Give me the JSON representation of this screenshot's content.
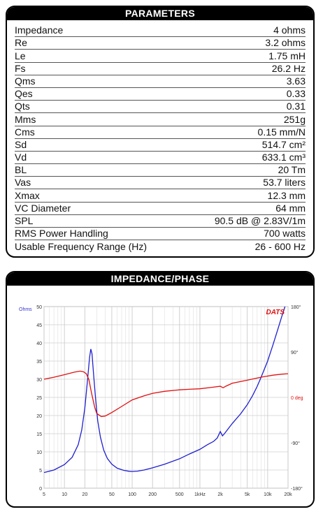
{
  "parameters": {
    "title": "PARAMETERS",
    "rows": [
      {
        "label": "Impedance",
        "value": "4 ohms"
      },
      {
        "label": "Re",
        "value": "3.2 ohms"
      },
      {
        "label": "Le",
        "value": "1.75 mH"
      },
      {
        "label": "Fs",
        "value": "26.2 Hz"
      },
      {
        "label": "Qms",
        "value": "3.63"
      },
      {
        "label": "Qes",
        "value": "0.33"
      },
      {
        "label": "Qts",
        "value": "0.31"
      },
      {
        "label": "Mms",
        "value": "251g"
      },
      {
        "label": "Cms",
        "value": "0.15 mm/N"
      },
      {
        "label": "Sd",
        "value": "514.7 cm²"
      },
      {
        "label": "Vd",
        "value": "633.1 cm³"
      },
      {
        "label": "BL",
        "value": "20 Tm"
      },
      {
        "label": "Vas",
        "value": "53.7 liters"
      },
      {
        "label": "Xmax",
        "value": "12.3 mm"
      },
      {
        "label": "VC Diameter",
        "value": "64 mm"
      },
      {
        "label": "SPL",
        "value": "90.5 dB @ 2.83V/1m"
      },
      {
        "label": "RMS Power Handling",
        "value": "700 watts"
      },
      {
        "label": "Usable Frequency Range (Hz)",
        "value": "26 - 600 Hz"
      }
    ]
  },
  "impedance_panel": {
    "title": "IMPEDANCE/PHASE",
    "brand": "DATS"
  },
  "chart_data": {
    "type": "line",
    "title": "IMPEDANCE/PHASE",
    "x_scale": "log",
    "xlim": [
      5,
      20000
    ],
    "x_ticks": [
      5,
      10,
      20,
      50,
      100,
      200,
      500,
      1000,
      2000,
      5000,
      10000,
      20000
    ],
    "x_tick_labels": [
      "5",
      "10",
      "20",
      "50",
      "100",
      "200",
      "500",
      "1kHz",
      "2k",
      "5k",
      "10k",
      "20k"
    ],
    "ylabel_left": "Ohms",
    "ylim_left": [
      0,
      50
    ],
    "y_ticks_left": [
      0,
      5,
      10,
      15,
      20,
      25,
      30,
      35,
      40,
      45,
      50
    ],
    "ylim_right": [
      -180,
      180
    ],
    "y_ticks_right": [
      180,
      90,
      0,
      -90,
      -180
    ],
    "y_tick_labels_right": [
      "180°",
      "90°",
      "0 deg",
      "-90°",
      "-180°"
    ],
    "grid": true,
    "series": [
      {
        "color": "#1f1fd0",
        "axis": "left",
        "points": [
          [
            5,
            4.3
          ],
          [
            7,
            5.0
          ],
          [
            10,
            6.5
          ],
          [
            13,
            8.5
          ],
          [
            16,
            12.0
          ],
          [
            18,
            16.0
          ],
          [
            20,
            22.0
          ],
          [
            22,
            30.0
          ],
          [
            23.5,
            36.0
          ],
          [
            24.5,
            38.3
          ],
          [
            25.5,
            37.0
          ],
          [
            27,
            31.0
          ],
          [
            29,
            24.0
          ],
          [
            31,
            18.5
          ],
          [
            34,
            14.0
          ],
          [
            38,
            10.5
          ],
          [
            43,
            8.2
          ],
          [
            50,
            6.6
          ],
          [
            60,
            5.5
          ],
          [
            75,
            4.9
          ],
          [
            90,
            4.65
          ],
          [
            100,
            4.6
          ],
          [
            120,
            4.7
          ],
          [
            150,
            5.0
          ],
          [
            200,
            5.6
          ],
          [
            300,
            6.6
          ],
          [
            500,
            8.1
          ],
          [
            700,
            9.4
          ],
          [
            1000,
            10.7
          ],
          [
            1300,
            12.0
          ],
          [
            1600,
            12.9
          ],
          [
            1800,
            13.8
          ],
          [
            2000,
            15.6
          ],
          [
            2150,
            14.4
          ],
          [
            2300,
            15.0
          ],
          [
            3000,
            17.8
          ],
          [
            4000,
            20.5
          ],
          [
            5000,
            23.0
          ],
          [
            6000,
            25.5
          ],
          [
            7000,
            28.0
          ],
          [
            8000,
            30.5
          ],
          [
            10000,
            35.0
          ],
          [
            12000,
            39.5
          ],
          [
            14000,
            43.5
          ],
          [
            16000,
            47.0
          ],
          [
            18000,
            50.0
          ]
        ]
      },
      {
        "color": "#e01010",
        "axis": "right",
        "points": [
          [
            5,
            36
          ],
          [
            7,
            40
          ],
          [
            10,
            45
          ],
          [
            14,
            50
          ],
          [
            17,
            52
          ],
          [
            19,
            51
          ],
          [
            21,
            47
          ],
          [
            23,
            35
          ],
          [
            25,
            10
          ],
          [
            28,
            -20
          ],
          [
            30,
            -32
          ],
          [
            35,
            -38
          ],
          [
            40,
            -37
          ],
          [
            50,
            -30
          ],
          [
            70,
            -18
          ],
          [
            100,
            -5
          ],
          [
            150,
            3
          ],
          [
            200,
            8
          ],
          [
            300,
            12
          ],
          [
            500,
            15
          ],
          [
            700,
            16
          ],
          [
            1000,
            17
          ],
          [
            1500,
            20
          ],
          [
            2000,
            22
          ],
          [
            2200,
            19
          ],
          [
            2400,
            22
          ],
          [
            3000,
            28
          ],
          [
            5000,
            34
          ],
          [
            8000,
            40
          ],
          [
            12000,
            44
          ],
          [
            16000,
            46
          ],
          [
            20000,
            47
          ]
        ]
      }
    ]
  }
}
